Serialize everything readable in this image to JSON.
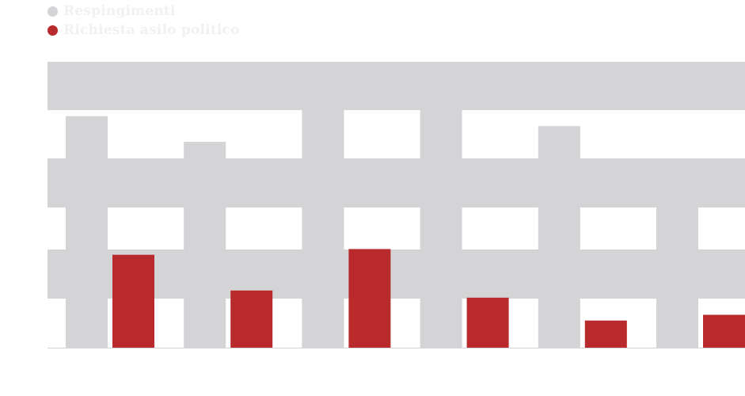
{
  "legend": {
    "items": [
      {
        "label": "Respingimenti",
        "color": "#d4d4d7"
      },
      {
        "label": "Richiesta asilo politico",
        "color": "#b82a2b"
      }
    ]
  },
  "colors": {
    "band": "#d4d4d7",
    "background": "#ffffff",
    "baseline": "#d4d4d7"
  },
  "chart_data": {
    "type": "bar",
    "grid": "horizontal alternating bands",
    "legend_placement": "top-left",
    "ylim": [
      0,
      1
    ],
    "categories": [
      "",
      "",
      "",
      "",
      "",
      ""
    ],
    "series": [
      {
        "name": "Respingimenti",
        "color": "#d4d4d7",
        "values": [
          0.81,
          0.72,
          1.0,
          1.0,
          0.775,
          0.655
        ]
      },
      {
        "name": "Richiesta asilo politico",
        "color": "#b82a2b",
        "values": [
          0.325,
          0.2,
          0.345,
          0.175,
          0.095,
          0.115
        ]
      }
    ]
  }
}
